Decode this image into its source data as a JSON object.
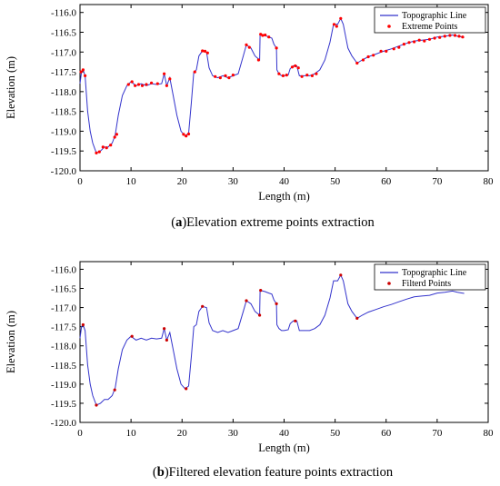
{
  "charts": [
    {
      "caption_letter": "a",
      "caption_text": "Elevation extreme points extraction",
      "chart_type": "line",
      "x_label": "Length (m)",
      "y_label": "Elevation (m)",
      "x_range": [
        0,
        80
      ],
      "y_range": [
        -120.0,
        -115.8
      ],
      "x_ticks": [
        "0",
        "10",
        "20",
        "30",
        "40",
        "50",
        "60",
        "70",
        "80"
      ],
      "y_ticks": [
        "-116.0",
        "-116.5",
        "-117.0",
        "-117.5",
        "-118.0",
        "-118.5",
        "-119.0",
        "-119.5",
        "-120.0"
      ],
      "legend": [
        "Topographic Line",
        "Extreme Points"
      ],
      "legend_position": "top-right",
      "line_color": "#3333cc",
      "point_color": "#ff0000",
      "line_profile": [
        [
          0.0,
          -117.8
        ],
        [
          0.3,
          -117.5
        ],
        [
          0.6,
          -117.45
        ],
        [
          1.0,
          -117.6
        ],
        [
          1.5,
          -118.5
        ],
        [
          2.0,
          -119.0
        ],
        [
          2.5,
          -119.3
        ],
        [
          3.2,
          -119.55
        ],
        [
          4.0,
          -119.5
        ],
        [
          4.8,
          -119.4
        ],
        [
          5.5,
          -119.4
        ],
        [
          6.3,
          -119.3
        ],
        [
          6.9,
          -119.1
        ],
        [
          7.5,
          -118.6
        ],
        [
          8.3,
          -118.1
        ],
        [
          9.2,
          -117.85
        ],
        [
          10.0,
          -117.75
        ],
        [
          11.0,
          -117.85
        ],
        [
          12.0,
          -117.8
        ],
        [
          13.0,
          -117.85
        ],
        [
          14.0,
          -117.8
        ],
        [
          15.0,
          -117.82
        ],
        [
          16.0,
          -117.8
        ],
        [
          16.5,
          -117.55
        ],
        [
          17.0,
          -117.85
        ],
        [
          17.6,
          -117.65
        ],
        [
          18.2,
          -118.05
        ],
        [
          19.0,
          -118.6
        ],
        [
          19.8,
          -119.0
        ],
        [
          20.6,
          -119.12
        ],
        [
          21.3,
          -119.05
        ],
        [
          21.8,
          -118.3
        ],
        [
          22.3,
          -117.5
        ],
        [
          22.8,
          -117.45
        ],
        [
          23.3,
          -117.1
        ],
        [
          24.0,
          -116.97
        ],
        [
          24.8,
          -117.0
        ],
        [
          25.3,
          -117.4
        ],
        [
          26.0,
          -117.6
        ],
        [
          27.0,
          -117.65
        ],
        [
          28.0,
          -117.6
        ],
        [
          29.0,
          -117.65
        ],
        [
          30.0,
          -117.6
        ],
        [
          31.0,
          -117.55
        ],
        [
          32.0,
          -117.1
        ],
        [
          32.6,
          -116.82
        ],
        [
          33.5,
          -116.9
        ],
        [
          34.3,
          -117.1
        ],
        [
          35.2,
          -117.2
        ],
        [
          35.3,
          -116.55
        ],
        [
          36.2,
          -116.58
        ],
        [
          37.0,
          -116.62
        ],
        [
          37.6,
          -116.65
        ],
        [
          38.0,
          -116.8
        ],
        [
          38.5,
          -116.9
        ],
        [
          38.6,
          -117.45
        ],
        [
          39.0,
          -117.55
        ],
        [
          39.5,
          -117.6
        ],
        [
          40.0,
          -117.6
        ],
        [
          40.8,
          -117.58
        ],
        [
          41.2,
          -117.42
        ],
        [
          41.8,
          -117.35
        ],
        [
          42.5,
          -117.35
        ],
        [
          43.0,
          -117.6
        ],
        [
          44.0,
          -117.6
        ],
        [
          45.0,
          -117.6
        ],
        [
          46.0,
          -117.55
        ],
        [
          47.0,
          -117.45
        ],
        [
          48.0,
          -117.2
        ],
        [
          49.0,
          -116.75
        ],
        [
          49.7,
          -116.3
        ],
        [
          50.5,
          -116.3
        ],
        [
          51.1,
          -116.15
        ],
        [
          51.6,
          -116.3
        ],
        [
          52.5,
          -116.9
        ],
        [
          53.3,
          -117.1
        ],
        [
          54.3,
          -117.28
        ],
        [
          55.3,
          -117.2
        ],
        [
          56.5,
          -117.12
        ],
        [
          58.0,
          -117.05
        ],
        [
          59.5,
          -116.98
        ],
        [
          61.0,
          -116.92
        ],
        [
          62.5,
          -116.85
        ],
        [
          64.0,
          -116.78
        ],
        [
          65.5,
          -116.72
        ],
        [
          67.0,
          -116.7
        ],
        [
          68.5,
          -116.68
        ],
        [
          70.0,
          -116.62
        ],
        [
          71.5,
          -116.6
        ],
        [
          73.0,
          -116.57
        ],
        [
          74.0,
          -116.6
        ],
        [
          75.3,
          -116.63
        ]
      ],
      "points": [
        [
          0.2,
          -117.5
        ],
        [
          0.6,
          -117.45
        ],
        [
          1.0,
          -117.6
        ],
        [
          3.2,
          -119.55
        ],
        [
          3.8,
          -119.52
        ],
        [
          4.5,
          -119.4
        ],
        [
          5.2,
          -119.42
        ],
        [
          6.0,
          -119.35
        ],
        [
          6.8,
          -119.15
        ],
        [
          7.2,
          -119.08
        ],
        [
          9.5,
          -117.82
        ],
        [
          10.2,
          -117.75
        ],
        [
          10.8,
          -117.85
        ],
        [
          11.5,
          -117.82
        ],
        [
          12.2,
          -117.85
        ],
        [
          13.0,
          -117.82
        ],
        [
          14.0,
          -117.78
        ],
        [
          15.2,
          -117.8
        ],
        [
          16.5,
          -117.55
        ],
        [
          17.0,
          -117.85
        ],
        [
          17.6,
          -117.68
        ],
        [
          20.3,
          -119.08
        ],
        [
          20.8,
          -119.12
        ],
        [
          21.3,
          -119.07
        ],
        [
          22.5,
          -117.5
        ],
        [
          24.0,
          -116.97
        ],
        [
          24.5,
          -116.98
        ],
        [
          25.0,
          -117.02
        ],
        [
          26.5,
          -117.62
        ],
        [
          27.5,
          -117.65
        ],
        [
          28.5,
          -117.6
        ],
        [
          29.2,
          -117.65
        ],
        [
          30.0,
          -117.58
        ],
        [
          32.6,
          -116.82
        ],
        [
          33.2,
          -116.88
        ],
        [
          35.0,
          -117.2
        ],
        [
          35.4,
          -116.55
        ],
        [
          35.8,
          -116.58
        ],
        [
          36.3,
          -116.57
        ],
        [
          37.0,
          -116.62
        ],
        [
          38.5,
          -116.9
        ],
        [
          39.0,
          -117.55
        ],
        [
          39.8,
          -117.6
        ],
        [
          40.5,
          -117.58
        ],
        [
          41.6,
          -117.38
        ],
        [
          42.2,
          -117.35
        ],
        [
          42.8,
          -117.4
        ],
        [
          43.5,
          -117.62
        ],
        [
          44.5,
          -117.58
        ],
        [
          45.5,
          -117.6
        ],
        [
          46.3,
          -117.55
        ],
        [
          49.8,
          -116.3
        ],
        [
          50.3,
          -116.35
        ],
        [
          51.1,
          -116.15
        ],
        [
          54.3,
          -117.28
        ],
        [
          55.5,
          -117.2
        ],
        [
          56.5,
          -117.12
        ],
        [
          57.5,
          -117.08
        ],
        [
          59.0,
          -116.98
        ],
        [
          60.0,
          -116.98
        ],
        [
          61.5,
          -116.92
        ],
        [
          62.5,
          -116.88
        ],
        [
          63.5,
          -116.8
        ],
        [
          64.5,
          -116.76
        ],
        [
          65.5,
          -116.74
        ],
        [
          66.5,
          -116.7
        ],
        [
          67.5,
          -116.72
        ],
        [
          68.5,
          -116.68
        ],
        [
          69.5,
          -116.65
        ],
        [
          70.5,
          -116.63
        ],
        [
          71.5,
          -116.6
        ],
        [
          72.5,
          -116.58
        ],
        [
          73.5,
          -116.58
        ],
        [
          74.3,
          -116.6
        ],
        [
          75.0,
          -116.62
        ]
      ]
    },
    {
      "caption_letter": "b",
      "caption_text": "Filtered elevation feature points extraction",
      "chart_type": "line",
      "x_label": "Length (m)",
      "y_label": "Elevation (m)",
      "x_range": [
        0,
        80
      ],
      "y_range": [
        -120.0,
        -115.8
      ],
      "x_ticks": [
        "0",
        "10",
        "20",
        "30",
        "40",
        "50",
        "60",
        "70",
        "80"
      ],
      "y_ticks": [
        "-116.0",
        "-116.5",
        "-117.0",
        "-117.5",
        "-118.0",
        "-118.5",
        "-119.0",
        "-119.5",
        "-120.0"
      ],
      "legend": [
        "Topographic Line",
        "Filterd Points"
      ],
      "legend_position": "top-right",
      "line_color": "#3333cc",
      "point_color": "#cc0000",
      "line_profile": [
        [
          0.0,
          -117.8
        ],
        [
          0.3,
          -117.5
        ],
        [
          0.6,
          -117.45
        ],
        [
          1.0,
          -117.6
        ],
        [
          1.5,
          -118.5
        ],
        [
          2.0,
          -119.0
        ],
        [
          2.5,
          -119.3
        ],
        [
          3.2,
          -119.55
        ],
        [
          4.0,
          -119.5
        ],
        [
          4.8,
          -119.4
        ],
        [
          5.5,
          -119.4
        ],
        [
          6.3,
          -119.3
        ],
        [
          6.9,
          -119.1
        ],
        [
          7.5,
          -118.6
        ],
        [
          8.3,
          -118.1
        ],
        [
          9.2,
          -117.85
        ],
        [
          10.0,
          -117.75
        ],
        [
          11.0,
          -117.85
        ],
        [
          12.0,
          -117.8
        ],
        [
          13.0,
          -117.85
        ],
        [
          14.0,
          -117.8
        ],
        [
          15.0,
          -117.82
        ],
        [
          16.0,
          -117.8
        ],
        [
          16.5,
          -117.55
        ],
        [
          17.0,
          -117.85
        ],
        [
          17.6,
          -117.65
        ],
        [
          18.2,
          -118.05
        ],
        [
          19.0,
          -118.6
        ],
        [
          19.8,
          -119.0
        ],
        [
          20.6,
          -119.12
        ],
        [
          21.3,
          -119.05
        ],
        [
          21.8,
          -118.3
        ],
        [
          22.3,
          -117.5
        ],
        [
          22.8,
          -117.45
        ],
        [
          23.3,
          -117.1
        ],
        [
          24.0,
          -116.97
        ],
        [
          24.8,
          -117.0
        ],
        [
          25.3,
          -117.4
        ],
        [
          26.0,
          -117.6
        ],
        [
          27.0,
          -117.65
        ],
        [
          28.0,
          -117.6
        ],
        [
          29.0,
          -117.65
        ],
        [
          30.0,
          -117.6
        ],
        [
          31.0,
          -117.55
        ],
        [
          32.0,
          -117.1
        ],
        [
          32.6,
          -116.82
        ],
        [
          33.5,
          -116.9
        ],
        [
          34.3,
          -117.1
        ],
        [
          35.2,
          -117.2
        ],
        [
          35.3,
          -116.55
        ],
        [
          36.2,
          -116.58
        ],
        [
          37.0,
          -116.62
        ],
        [
          37.6,
          -116.65
        ],
        [
          38.0,
          -116.8
        ],
        [
          38.5,
          -116.9
        ],
        [
          38.6,
          -117.45
        ],
        [
          39.0,
          -117.55
        ],
        [
          39.5,
          -117.6
        ],
        [
          40.0,
          -117.6
        ],
        [
          40.8,
          -117.58
        ],
        [
          41.2,
          -117.42
        ],
        [
          41.8,
          -117.35
        ],
        [
          42.5,
          -117.35
        ],
        [
          43.0,
          -117.6
        ],
        [
          44.0,
          -117.6
        ],
        [
          45.0,
          -117.6
        ],
        [
          46.0,
          -117.55
        ],
        [
          47.0,
          -117.45
        ],
        [
          48.0,
          -117.2
        ],
        [
          49.0,
          -116.75
        ],
        [
          49.7,
          -116.3
        ],
        [
          50.5,
          -116.3
        ],
        [
          51.1,
          -116.15
        ],
        [
          51.6,
          -116.3
        ],
        [
          52.5,
          -116.9
        ],
        [
          53.3,
          -117.1
        ],
        [
          54.3,
          -117.28
        ],
        [
          55.3,
          -117.2
        ],
        [
          56.5,
          -117.12
        ],
        [
          58.0,
          -117.05
        ],
        [
          59.5,
          -116.98
        ],
        [
          61.0,
          -116.92
        ],
        [
          62.5,
          -116.85
        ],
        [
          64.0,
          -116.78
        ],
        [
          65.5,
          -116.72
        ],
        [
          67.0,
          -116.7
        ],
        [
          68.5,
          -116.68
        ],
        [
          70.0,
          -116.62
        ],
        [
          71.5,
          -116.6
        ],
        [
          73.0,
          -116.57
        ],
        [
          74.0,
          -116.6
        ],
        [
          75.3,
          -116.63
        ]
      ],
      "points": [
        [
          0.6,
          -117.45
        ],
        [
          3.2,
          -119.55
        ],
        [
          6.8,
          -119.15
        ],
        [
          10.2,
          -117.75
        ],
        [
          16.5,
          -117.55
        ],
        [
          17.0,
          -117.85
        ],
        [
          20.8,
          -119.12
        ],
        [
          24.0,
          -116.97
        ],
        [
          32.6,
          -116.82
        ],
        [
          35.2,
          -117.2
        ],
        [
          35.4,
          -116.55
        ],
        [
          38.5,
          -116.9
        ],
        [
          42.2,
          -117.35
        ],
        [
          51.1,
          -116.15
        ],
        [
          54.3,
          -117.28
        ]
      ]
    }
  ]
}
